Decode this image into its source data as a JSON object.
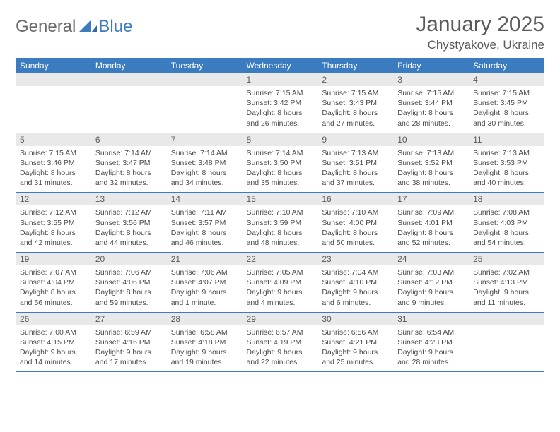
{
  "brand": {
    "word1": "General",
    "word2": "Blue"
  },
  "title": "January 2025",
  "location": "Chystyakove, Ukraine",
  "colors": {
    "header_bg": "#3b7bbf",
    "header_text": "#ffffff",
    "daynum_bg": "#e9e9e9",
    "text": "#4a4a4a",
    "rule": "#3b7bbf"
  },
  "day_headers": [
    "Sunday",
    "Monday",
    "Tuesday",
    "Wednesday",
    "Thursday",
    "Friday",
    "Saturday"
  ],
  "weeks": [
    [
      {
        "n": "",
        "sr": "",
        "ss": "",
        "dl": ""
      },
      {
        "n": "",
        "sr": "",
        "ss": "",
        "dl": ""
      },
      {
        "n": "",
        "sr": "",
        "ss": "",
        "dl": ""
      },
      {
        "n": "1",
        "sr": "7:15 AM",
        "ss": "3:42 PM",
        "dl": "8 hours and 26 minutes."
      },
      {
        "n": "2",
        "sr": "7:15 AM",
        "ss": "3:43 PM",
        "dl": "8 hours and 27 minutes."
      },
      {
        "n": "3",
        "sr": "7:15 AM",
        "ss": "3:44 PM",
        "dl": "8 hours and 28 minutes."
      },
      {
        "n": "4",
        "sr": "7:15 AM",
        "ss": "3:45 PM",
        "dl": "8 hours and 30 minutes."
      }
    ],
    [
      {
        "n": "5",
        "sr": "7:15 AM",
        "ss": "3:46 PM",
        "dl": "8 hours and 31 minutes."
      },
      {
        "n": "6",
        "sr": "7:14 AM",
        "ss": "3:47 PM",
        "dl": "8 hours and 32 minutes."
      },
      {
        "n": "7",
        "sr": "7:14 AM",
        "ss": "3:48 PM",
        "dl": "8 hours and 34 minutes."
      },
      {
        "n": "8",
        "sr": "7:14 AM",
        "ss": "3:50 PM",
        "dl": "8 hours and 35 minutes."
      },
      {
        "n": "9",
        "sr": "7:13 AM",
        "ss": "3:51 PM",
        "dl": "8 hours and 37 minutes."
      },
      {
        "n": "10",
        "sr": "7:13 AM",
        "ss": "3:52 PM",
        "dl": "8 hours and 38 minutes."
      },
      {
        "n": "11",
        "sr": "7:13 AM",
        "ss": "3:53 PM",
        "dl": "8 hours and 40 minutes."
      }
    ],
    [
      {
        "n": "12",
        "sr": "7:12 AM",
        "ss": "3:55 PM",
        "dl": "8 hours and 42 minutes."
      },
      {
        "n": "13",
        "sr": "7:12 AM",
        "ss": "3:56 PM",
        "dl": "8 hours and 44 minutes."
      },
      {
        "n": "14",
        "sr": "7:11 AM",
        "ss": "3:57 PM",
        "dl": "8 hours and 46 minutes."
      },
      {
        "n": "15",
        "sr": "7:10 AM",
        "ss": "3:59 PM",
        "dl": "8 hours and 48 minutes."
      },
      {
        "n": "16",
        "sr": "7:10 AM",
        "ss": "4:00 PM",
        "dl": "8 hours and 50 minutes."
      },
      {
        "n": "17",
        "sr": "7:09 AM",
        "ss": "4:01 PM",
        "dl": "8 hours and 52 minutes."
      },
      {
        "n": "18",
        "sr": "7:08 AM",
        "ss": "4:03 PM",
        "dl": "8 hours and 54 minutes."
      }
    ],
    [
      {
        "n": "19",
        "sr": "7:07 AM",
        "ss": "4:04 PM",
        "dl": "8 hours and 56 minutes."
      },
      {
        "n": "20",
        "sr": "7:06 AM",
        "ss": "4:06 PM",
        "dl": "8 hours and 59 minutes."
      },
      {
        "n": "21",
        "sr": "7:06 AM",
        "ss": "4:07 PM",
        "dl": "9 hours and 1 minute."
      },
      {
        "n": "22",
        "sr": "7:05 AM",
        "ss": "4:09 PM",
        "dl": "9 hours and 4 minutes."
      },
      {
        "n": "23",
        "sr": "7:04 AM",
        "ss": "4:10 PM",
        "dl": "9 hours and 6 minutes."
      },
      {
        "n": "24",
        "sr": "7:03 AM",
        "ss": "4:12 PM",
        "dl": "9 hours and 9 minutes."
      },
      {
        "n": "25",
        "sr": "7:02 AM",
        "ss": "4:13 PM",
        "dl": "9 hours and 11 minutes."
      }
    ],
    [
      {
        "n": "26",
        "sr": "7:00 AM",
        "ss": "4:15 PM",
        "dl": "9 hours and 14 minutes."
      },
      {
        "n": "27",
        "sr": "6:59 AM",
        "ss": "4:16 PM",
        "dl": "9 hours and 17 minutes."
      },
      {
        "n": "28",
        "sr": "6:58 AM",
        "ss": "4:18 PM",
        "dl": "9 hours and 19 minutes."
      },
      {
        "n": "29",
        "sr": "6:57 AM",
        "ss": "4:19 PM",
        "dl": "9 hours and 22 minutes."
      },
      {
        "n": "30",
        "sr": "6:56 AM",
        "ss": "4:21 PM",
        "dl": "9 hours and 25 minutes."
      },
      {
        "n": "31",
        "sr": "6:54 AM",
        "ss": "4:23 PM",
        "dl": "9 hours and 28 minutes."
      },
      {
        "n": "",
        "sr": "",
        "ss": "",
        "dl": ""
      }
    ]
  ],
  "labels": {
    "sunrise": "Sunrise:",
    "sunset": "Sunset:",
    "daylight": "Daylight:"
  }
}
